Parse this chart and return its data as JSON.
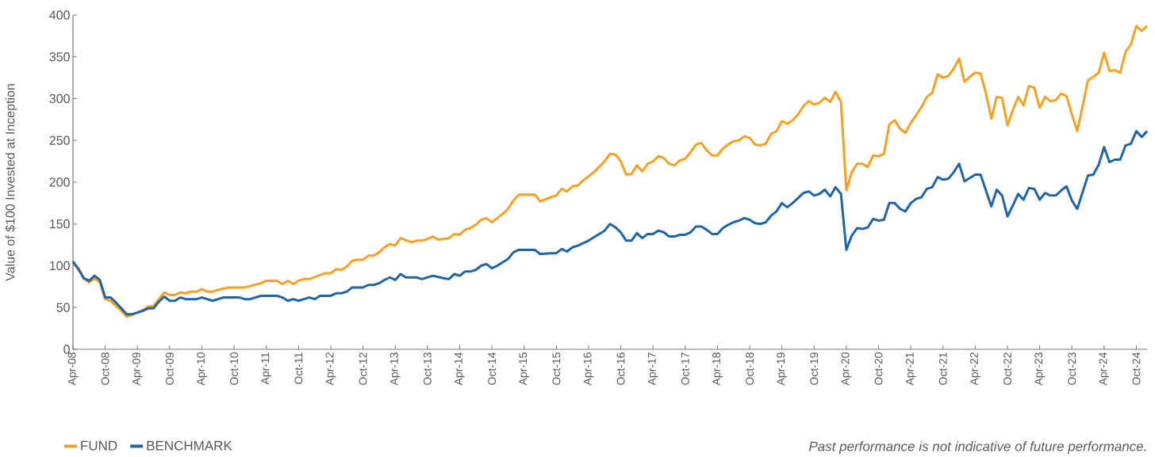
{
  "chart_data": {
    "type": "line",
    "ylabel": "Value of $100 Invested at Inception",
    "annotations": [
      "*Past performance is not indicative of future performance.*"
    ],
    "xlim": [
      "2008-04",
      "2024-12"
    ],
    "ylim": [
      0,
      400
    ],
    "yticks": [
      0,
      50,
      100,
      150,
      200,
      250,
      300,
      350,
      400
    ],
    "xticks": [
      {
        "value": "2008-04",
        "label": "Apr-08"
      },
      {
        "value": "2008-10",
        "label": "Oct-08"
      },
      {
        "value": "2009-04",
        "label": "Apr-09"
      },
      {
        "value": "2009-10",
        "label": "Oct-09"
      },
      {
        "value": "2010-04",
        "label": "Apr-10"
      },
      {
        "value": "2010-10",
        "label": "Oct-10"
      },
      {
        "value": "2011-04",
        "label": "Apr-11"
      },
      {
        "value": "2011-10",
        "label": "Oct-11"
      },
      {
        "value": "2012-04",
        "label": "Apr-12"
      },
      {
        "value": "2012-10",
        "label": "Oct-12"
      },
      {
        "value": "2013-04",
        "label": "Apr-13"
      },
      {
        "value": "2013-10",
        "label": "Oct-13"
      },
      {
        "value": "2014-04",
        "label": "Apr-14"
      },
      {
        "value": "2014-10",
        "label": "Oct-14"
      },
      {
        "value": "2015-04",
        "label": "Apr-15"
      },
      {
        "value": "2015-10",
        "label": "Oct-15"
      },
      {
        "value": "2016-04",
        "label": "Apr-16"
      },
      {
        "value": "2016-10",
        "label": "Oct-16"
      },
      {
        "value": "2017-04",
        "label": "Apr-17"
      },
      {
        "value": "2017-10",
        "label": "Oct-17"
      },
      {
        "value": "2018-04",
        "label": "Apr-18"
      },
      {
        "value": "2018-10",
        "label": "Oct-18"
      },
      {
        "value": "2019-04",
        "label": "Apr-19"
      },
      {
        "value": "2019-10",
        "label": "Oct-19"
      },
      {
        "value": "2020-04",
        "label": "Apr-20"
      },
      {
        "value": "2020-10",
        "label": "Oct-20"
      },
      {
        "value": "2021-04",
        "label": "Apr-21"
      },
      {
        "value": "2021-10",
        "label": "Oct-21"
      },
      {
        "value": "2022-04",
        "label": "Apr-22"
      },
      {
        "value": "2022-10",
        "label": "Oct-22"
      },
      {
        "value": "2023-04",
        "label": "Apr-23"
      },
      {
        "value": "2023-10",
        "label": "Oct-23"
      },
      {
        "value": "2024-04",
        "label": "Apr-24"
      },
      {
        "value": "2024-10",
        "label": "Oct-24"
      }
    ],
    "legend": "bottom",
    "line_style": "solid",
    "series": [
      {
        "name": "FUND",
        "color": "#f7a023",
        "x": [
          "2008-04",
          "2008-05",
          "2008-06",
          "2008-07",
          "2008-08",
          "2008-09",
          "2008-10",
          "2008-11",
          "2008-12",
          "2009-01",
          "2009-02",
          "2009-03",
          "2009-04",
          "2009-05",
          "2009-06",
          "2009-07",
          "2009-08",
          "2009-09",
          "2009-10",
          "2009-11",
          "2009-12",
          "2010-01",
          "2010-02",
          "2010-03",
          "2010-04",
          "2010-05",
          "2010-06",
          "2010-07",
          "2010-09",
          "2010-12",
          "2011-03",
          "2011-04",
          "2011-06",
          "2011-07",
          "2011-08",
          "2011-09",
          "2011-10",
          "2011-11",
          "2011-12",
          "2012-02",
          "2012-03",
          "2012-04",
          "2012-05",
          "2012-06",
          "2012-07",
          "2012-08",
          "2012-09",
          "2012-10",
          "2012-11",
          "2012-12",
          "2013-01",
          "2013-02",
          "2013-03",
          "2013-04",
          "2013-05",
          "2013-07",
          "2013-08",
          "2013-09",
          "2013-10",
          "2013-11",
          "2013-12",
          "2014-02",
          "2014-03",
          "2014-04",
          "2014-05",
          "2014-06",
          "2014-07",
          "2014-08",
          "2014-09",
          "2014-10",
          "2014-11",
          "2014-12",
          "2015-01",
          "2015-02",
          "2015-03",
          "2015-06",
          "2015-07",
          "2015-09",
          "2015-10",
          "2015-11",
          "2015-12",
          "2016-01",
          "2016-02",
          "2016-03",
          "2016-05",
          "2016-07",
          "2016-08",
          "2016-09",
          "2016-10",
          "2016-11",
          "2016-12",
          "2017-01",
          "2017-02",
          "2017-03",
          "2017-04",
          "2017-05",
          "2017-06",
          "2017-07",
          "2017-08",
          "2017-09",
          "2017-10",
          "2017-11",
          "2017-12",
          "2018-01",
          "2018-02",
          "2018-03",
          "2018-04",
          "2018-05",
          "2018-06",
          "2018-07",
          "2018-08",
          "2018-09",
          "2018-10",
          "2018-11",
          "2018-12",
          "2019-01",
          "2019-02",
          "2019-03",
          "2019-04",
          "2019-05",
          "2019-06",
          "2019-07",
          "2019-08",
          "2019-09",
          "2019-10",
          "2019-11",
          "2019-12",
          "2020-01",
          "2020-02",
          "2020-03",
          "2020-04",
          "2020-05",
          "2020-06",
          "2020-07",
          "2020-08",
          "2020-09",
          "2020-10",
          "2020-11",
          "2020-12",
          "2021-01",
          "2021-02",
          "2021-03",
          "2021-04",
          "2021-05",
          "2021-06",
          "2021-07",
          "2021-08",
          "2021-09",
          "2021-10",
          "2021-11",
          "2021-12",
          "2022-01",
          "2022-02",
          "2022-03",
          "2022-04",
          "2022-05",
          "2022-06",
          "2022-07",
          "2022-08",
          "2022-09",
          "2022-10",
          "2022-11",
          "2022-12",
          "2023-01",
          "2023-02",
          "2023-03",
          "2023-04",
          "2023-05",
          "2023-06",
          "2023-07",
          "2023-08",
          "2023-09",
          "2023-10",
          "2023-11",
          "2023-12",
          "2024-01",
          "2024-02",
          "2024-03",
          "2024-04",
          "2024-05",
          "2024-06",
          "2024-07",
          "2024-08",
          "2024-09",
          "2024-10",
          "2024-11",
          "2024-12"
        ],
        "values": [
          103,
          97,
          85,
          80,
          85,
          80,
          60,
          58,
          52,
          46,
          39,
          41,
          44,
          47,
          51,
          52,
          60,
          68,
          65,
          65,
          68,
          67,
          69,
          69,
          72,
          69,
          69,
          71,
          74,
          74,
          79,
          82,
          82,
          78,
          82,
          78,
          82,
          84,
          84,
          89,
          91,
          91,
          96,
          95,
          99,
          106,
          107,
          107,
          112,
          112,
          116,
          122,
          126,
          124,
          133,
          128,
          130,
          130,
          132,
          135,
          131,
          133,
          138,
          137,
          143,
          145,
          149,
          155,
          157,
          152,
          157,
          162,
          168,
          178,
          185,
          185,
          177,
          182,
          184,
          192,
          189,
          195,
          196,
          202,
          212,
          225,
          234,
          233,
          225,
          209,
          210,
          220,
          213,
          222,
          225,
          231,
          229,
          222,
          220,
          226,
          228,
          236,
          245,
          247,
          238,
          232,
          232,
          240,
          245,
          249,
          250,
          255,
          253,
          245,
          244,
          246,
          258,
          261,
          273,
          270,
          274,
          281,
          291,
          297,
          293,
          295,
          301,
          296,
          308,
          296,
          190,
          212,
          222,
          222,
          218,
          232,
          231,
          234,
          269,
          274,
          264,
          259,
          271,
          280,
          290,
          302,
          307,
          329,
          325,
          327,
          336,
          348,
          320,
          326,
          331,
          330,
          306,
          276,
          302,
          301,
          268,
          286,
          302,
          292,
          315,
          313,
          289,
          302,
          297,
          298,
          306,
          303,
          281,
          261,
          291,
          322,
          326,
          331,
          355,
          333,
          334,
          331,
          356,
          365,
          387,
          381,
          387
        ]
      },
      {
        "name": "BENCHMARK",
        "color": "#1f64a6",
        "x": [
          "2008-04",
          "2008-05",
          "2008-06",
          "2008-07",
          "2008-08",
          "2008-09",
          "2008-10",
          "2008-11",
          "2008-12",
          "2009-01",
          "2009-02",
          "2009-03",
          "2009-04",
          "2009-05",
          "2009-06",
          "2009-07",
          "2009-08",
          "2009-09",
          "2009-10",
          "2009-11",
          "2009-12",
          "2010-01",
          "2010-03",
          "2010-04",
          "2010-06",
          "2010-08",
          "2010-11",
          "2010-12",
          "2011-01",
          "2011-03",
          "2011-06",
          "2011-07",
          "2011-08",
          "2011-09",
          "2011-10",
          "2011-11",
          "2011-12",
          "2012-01",
          "2012-02",
          "2012-04",
          "2012-05",
          "2012-06",
          "2012-07",
          "2012-08",
          "2012-10",
          "2012-11",
          "2012-12",
          "2013-01",
          "2013-02",
          "2013-03",
          "2013-04",
          "2013-05",
          "2013-06",
          "2013-08",
          "2013-09",
          "2013-11",
          "2014-01",
          "2014-02",
          "2014-03",
          "2014-04",
          "2014-05",
          "2014-06",
          "2014-07",
          "2014-08",
          "2014-09",
          "2014-10",
          "2014-11",
          "2014-12",
          "2015-01",
          "2015-02",
          "2015-03",
          "2015-06",
          "2015-07",
          "2015-09",
          "2015-10",
          "2015-11",
          "2015-12",
          "2016-01",
          "2016-02",
          "2016-04",
          "2016-07",
          "2016-08",
          "2016-09",
          "2016-10",
          "2016-11",
          "2016-12",
          "2017-01",
          "2017-02",
          "2017-03",
          "2017-04",
          "2017-05",
          "2017-06",
          "2017-07",
          "2017-08",
          "2017-09",
          "2017-10",
          "2017-11",
          "2017-12",
          "2018-01",
          "2018-02",
          "2018-03",
          "2018-04",
          "2018-05",
          "2018-06",
          "2018-07",
          "2018-08",
          "2018-09",
          "2018-10",
          "2018-11",
          "2018-12",
          "2019-01",
          "2019-02",
          "2019-03",
          "2019-04",
          "2019-05",
          "2019-06",
          "2019-07",
          "2019-08",
          "2019-09",
          "2019-10",
          "2019-11",
          "2019-12",
          "2020-01",
          "2020-02",
          "2020-03",
          "2020-04",
          "2020-05",
          "2020-06",
          "2020-07",
          "2020-08",
          "2020-09",
          "2020-10",
          "2020-11",
          "2020-12",
          "2021-01",
          "2021-02",
          "2021-03",
          "2021-04",
          "2021-05",
          "2021-06",
          "2021-07",
          "2021-08",
          "2021-09",
          "2021-10",
          "2021-11",
          "2021-12",
          "2022-01",
          "2022-02",
          "2022-03",
          "2022-04",
          "2022-05",
          "2022-06",
          "2022-07",
          "2022-08",
          "2022-09",
          "2022-10",
          "2022-11",
          "2022-12",
          "2023-01",
          "2023-02",
          "2023-03",
          "2023-04",
          "2023-05",
          "2023-06",
          "2023-07",
          "2023-08",
          "2023-09",
          "2023-10",
          "2023-11",
          "2023-12",
          "2024-01",
          "2024-02",
          "2024-03",
          "2024-04",
          "2024-05",
          "2024-06",
          "2024-07",
          "2024-08",
          "2024-09",
          "2024-10",
          "2024-11",
          "2024-12"
        ],
        "values": [
          105,
          96,
          85,
          82,
          88,
          83,
          62,
          62,
          56,
          49,
          42,
          42,
          44,
          46,
          49,
          49,
          57,
          63,
          58,
          58,
          62,
          60,
          60,
          62,
          58,
          62,
          62,
          60,
          60,
          64,
          64,
          62,
          58,
          60,
          58,
          60,
          62,
          60,
          64,
          64,
          67,
          67,
          69,
          74,
          74,
          77,
          77,
          79,
          83,
          86,
          83,
          90,
          86,
          86,
          84,
          88,
          85,
          84,
          90,
          88,
          93,
          93,
          95,
          100,
          102,
          97,
          100,
          104,
          108,
          116,
          119,
          119,
          114,
          115,
          115,
          120,
          117,
          122,
          124,
          130,
          142,
          150,
          146,
          140,
          130,
          130,
          139,
          133,
          138,
          138,
          142,
          140,
          135,
          135,
          137,
          137,
          140,
          147,
          147,
          143,
          138,
          138,
          145,
          149,
          152,
          154,
          157,
          155,
          151,
          150,
          152,
          160,
          165,
          175,
          170,
          175,
          181,
          187,
          189,
          184,
          186,
          191,
          183,
          194,
          186,
          119,
          136,
          145,
          144,
          146,
          156,
          154,
          155,
          175,
          175,
          168,
          165,
          175,
          180,
          182,
          192,
          194,
          206,
          203,
          204,
          212,
          222,
          201,
          205,
          209,
          209,
          190,
          171,
          191,
          184,
          159,
          172,
          186,
          179,
          193,
          192,
          179,
          187,
          184,
          184,
          190,
          195,
          178,
          168,
          188,
          208,
          209,
          221,
          242,
          224,
          227,
          227,
          244,
          246,
          261,
          254,
          261
        ]
      }
    ]
  }
}
